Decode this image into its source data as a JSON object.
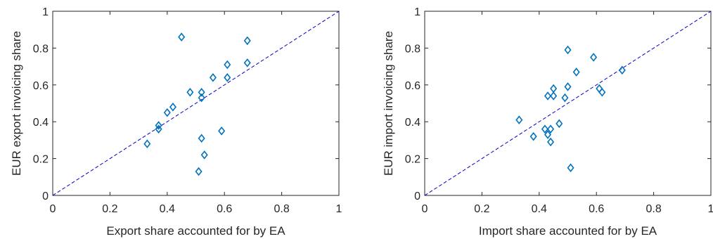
{
  "chart_data": [
    {
      "type": "scatter",
      "title": "",
      "xlabel": "Export share accounted for by EA",
      "ylabel": "EUR export invoicing share",
      "xlim": [
        0,
        1
      ],
      "ylim": [
        0,
        1
      ],
      "xticks": [
        "0",
        "0.2",
        "0.4",
        "0.6",
        "0.8",
        "1"
      ],
      "yticks": [
        "0",
        "0.2",
        "0.4",
        "0.6",
        "0.8",
        "1"
      ],
      "grid": false,
      "marker": "diamond",
      "marker_color": "#0072bd",
      "reference_line": {
        "style": "dashed",
        "color": "#0000cc",
        "from": [
          0,
          0
        ],
        "to": [
          1,
          1
        ]
      },
      "points": [
        {
          "x": 0.33,
          "y": 0.28
        },
        {
          "x": 0.37,
          "y": 0.38
        },
        {
          "x": 0.37,
          "y": 0.36
        },
        {
          "x": 0.4,
          "y": 0.45
        },
        {
          "x": 0.42,
          "y": 0.48
        },
        {
          "x": 0.45,
          "y": 0.86
        },
        {
          "x": 0.48,
          "y": 0.56
        },
        {
          "x": 0.51,
          "y": 0.13
        },
        {
          "x": 0.52,
          "y": 0.31
        },
        {
          "x": 0.52,
          "y": 0.56
        },
        {
          "x": 0.52,
          "y": 0.53
        },
        {
          "x": 0.53,
          "y": 0.22
        },
        {
          "x": 0.56,
          "y": 0.64
        },
        {
          "x": 0.59,
          "y": 0.35
        },
        {
          "x": 0.61,
          "y": 0.64
        },
        {
          "x": 0.61,
          "y": 0.71
        },
        {
          "x": 0.68,
          "y": 0.84
        },
        {
          "x": 0.68,
          "y": 0.72
        }
      ]
    },
    {
      "type": "scatter",
      "title": "",
      "xlabel": "Import share accounted for by EA",
      "ylabel": "EUR import invoicing share",
      "xlim": [
        0,
        1
      ],
      "ylim": [
        0,
        1
      ],
      "xticks": [
        "0",
        "0.2",
        "0.4",
        "0.6",
        "0.8",
        "1"
      ],
      "yticks": [
        "0",
        "0.2",
        "0.4",
        "0.6",
        "0.8",
        "1"
      ],
      "grid": false,
      "marker": "diamond",
      "marker_color": "#0072bd",
      "reference_line": {
        "style": "dashed",
        "color": "#0000cc",
        "from": [
          0,
          0
        ],
        "to": [
          1,
          1
        ]
      },
      "points": [
        {
          "x": 0.33,
          "y": 0.41
        },
        {
          "x": 0.38,
          "y": 0.32
        },
        {
          "x": 0.42,
          "y": 0.36
        },
        {
          "x": 0.43,
          "y": 0.33
        },
        {
          "x": 0.43,
          "y": 0.54
        },
        {
          "x": 0.44,
          "y": 0.29
        },
        {
          "x": 0.44,
          "y": 0.36
        },
        {
          "x": 0.45,
          "y": 0.54
        },
        {
          "x": 0.45,
          "y": 0.58
        },
        {
          "x": 0.47,
          "y": 0.39
        },
        {
          "x": 0.49,
          "y": 0.53
        },
        {
          "x": 0.5,
          "y": 0.59
        },
        {
          "x": 0.5,
          "y": 0.79
        },
        {
          "x": 0.51,
          "y": 0.15
        },
        {
          "x": 0.53,
          "y": 0.67
        },
        {
          "x": 0.59,
          "y": 0.75
        },
        {
          "x": 0.61,
          "y": 0.58
        },
        {
          "x": 0.62,
          "y": 0.56
        },
        {
          "x": 0.69,
          "y": 0.68
        }
      ]
    }
  ]
}
